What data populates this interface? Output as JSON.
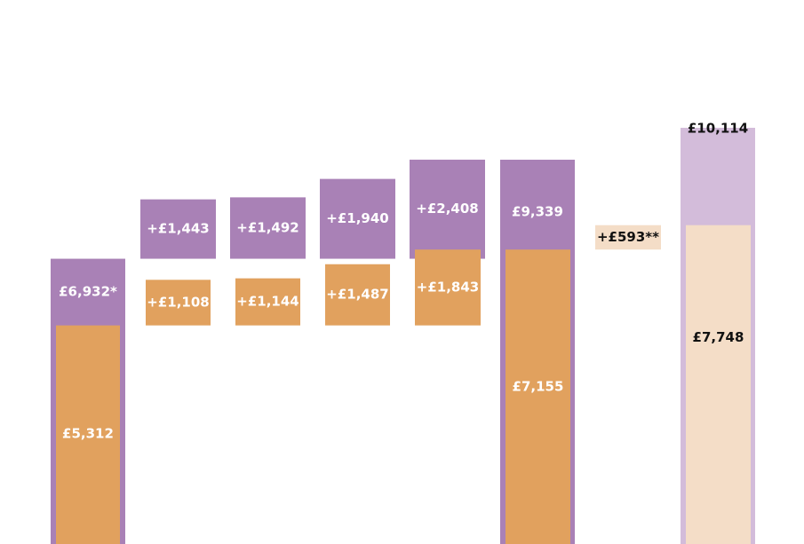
{
  "colors": {
    "purple": "#a981b6",
    "orange": "#e1a15e",
    "light_purple": "#d3bcda",
    "light_orange": "#f4ddc7",
    "label_on_dark": "#ffffff",
    "label_on_light": "#111111"
  },
  "chart_data": {
    "type": "bar",
    "subtype": "waterfall",
    "title": "",
    "xlabel": "",
    "ylabel": "",
    "ylim": [
      0,
      11000
    ],
    "grid": false,
    "legend": "none",
    "bars": [
      {
        "kind": "total",
        "outer_base": 0,
        "outer_value": 6932,
        "outer_label": "£6,932*",
        "inner_base": 0,
        "inner_value": 5312,
        "inner_label": "£5,312"
      },
      {
        "kind": "step",
        "outer_base": 6932,
        "outer_value": 1443,
        "outer_label": "+£1,443",
        "inner_base": 5312,
        "inner_value": 1108,
        "inner_label": "+£1,108"
      },
      {
        "kind": "step",
        "outer_base": 6932,
        "outer_value": 1492,
        "outer_label": "+£1,492",
        "inner_base": 5312,
        "inner_value": 1144,
        "inner_label": "+£1,144"
      },
      {
        "kind": "step",
        "outer_base": 6932,
        "outer_value": 1940,
        "outer_label": "+£1,940",
        "inner_base": 5312,
        "inner_value": 1487,
        "inner_label": "+£1,487"
      },
      {
        "kind": "step",
        "outer_base": 6932,
        "outer_value": 2408,
        "outer_label": "+£2,408",
        "inner_base": 5312,
        "inner_value": 1843,
        "inner_label": "+£1,843"
      },
      {
        "kind": "total",
        "outer_base": 0,
        "outer_value": 9339,
        "outer_label": "£9,339",
        "inner_base": 0,
        "inner_value": 7155,
        "inner_label": "£7,155"
      },
      {
        "kind": "step_light",
        "inner_base": 7155,
        "inner_value": 593,
        "inner_label": "+£593**"
      },
      {
        "kind": "total_light",
        "outer_base": 0,
        "outer_value": 10114,
        "outer_label": "£10,114",
        "inner_base": 0,
        "inner_value": 7748,
        "inner_label": "£7,748"
      }
    ]
  }
}
